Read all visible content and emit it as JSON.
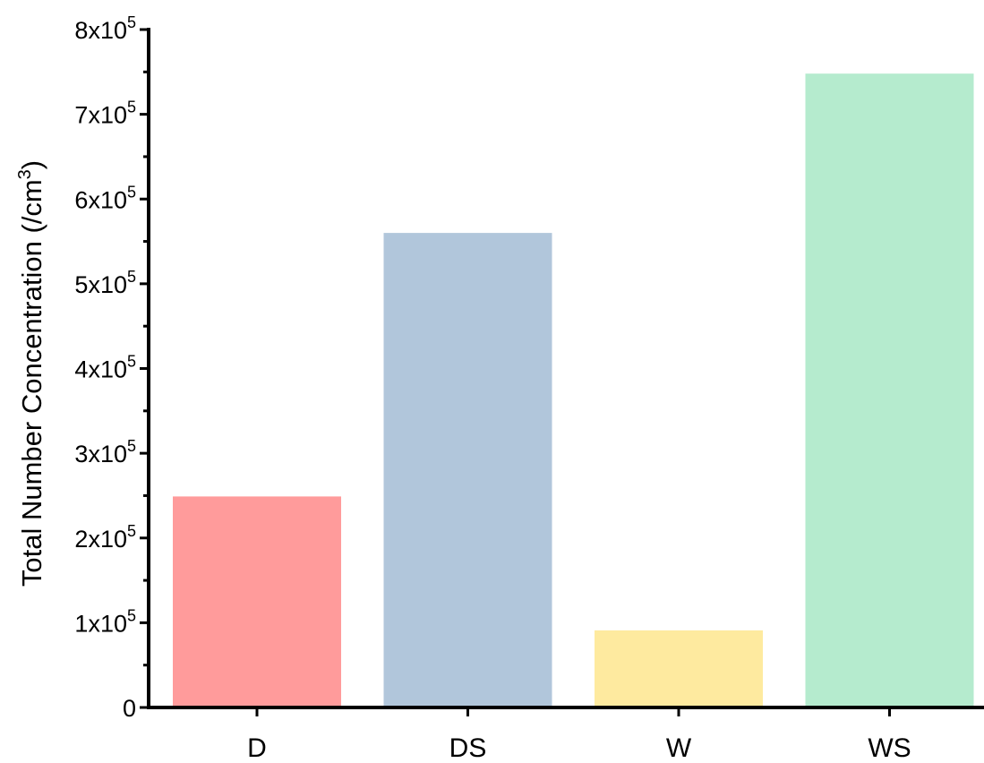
{
  "chart_data": {
    "type": "bar",
    "categories": [
      "D",
      "DS",
      "W",
      "WS"
    ],
    "values": [
      249000,
      560000,
      91000,
      748000
    ],
    "colors": [
      "#ff9b9b",
      "#b1c6db",
      "#feea9f",
      "#b5ebce"
    ],
    "title": "",
    "xlabel": "",
    "ylabel": "Total Number Concentration (/cm",
    "ylabel_superscript": "3",
    "ylabel_suffix": ")",
    "ylim": [
      0,
      800000
    ],
    "yticks": [
      {
        "value": 0,
        "base": "0",
        "exp": ""
      },
      {
        "value": 100000,
        "base": "1x10",
        "exp": "5"
      },
      {
        "value": 200000,
        "base": "2x10",
        "exp": "5"
      },
      {
        "value": 300000,
        "base": "3x10",
        "exp": "5"
      },
      {
        "value": 400000,
        "base": "4x10",
        "exp": "5"
      },
      {
        "value": 500000,
        "base": "5x10",
        "exp": "5"
      },
      {
        "value": 600000,
        "base": "6x10",
        "exp": "5"
      },
      {
        "value": 700000,
        "base": "7x10",
        "exp": "5"
      },
      {
        "value": 800000,
        "base": "8x10",
        "exp": "5"
      }
    ],
    "minor_ticks": true,
    "grid": false,
    "legend": "none"
  }
}
